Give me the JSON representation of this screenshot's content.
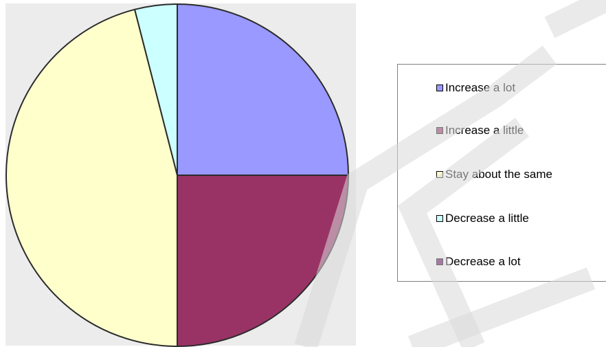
{
  "chart_data": {
    "type": "pie",
    "title": "",
    "start_angle_deg": 0,
    "direction": "clockwise",
    "slices": [
      {
        "label": "Increase a lot",
        "value": 25,
        "color": "#9999ff"
      },
      {
        "label": "Increase a little",
        "value": 25,
        "color": "#993366"
      },
      {
        "label": "Stay about the same",
        "value": 46,
        "color": "#ffffcc"
      },
      {
        "label": "Decrease a little",
        "value": 4,
        "color": "#ccffff"
      },
      {
        "label": "Decrease a lot",
        "value": 0,
        "color": "#660066"
      }
    ],
    "legend_placement": "right",
    "plot_background": "#ececec"
  }
}
